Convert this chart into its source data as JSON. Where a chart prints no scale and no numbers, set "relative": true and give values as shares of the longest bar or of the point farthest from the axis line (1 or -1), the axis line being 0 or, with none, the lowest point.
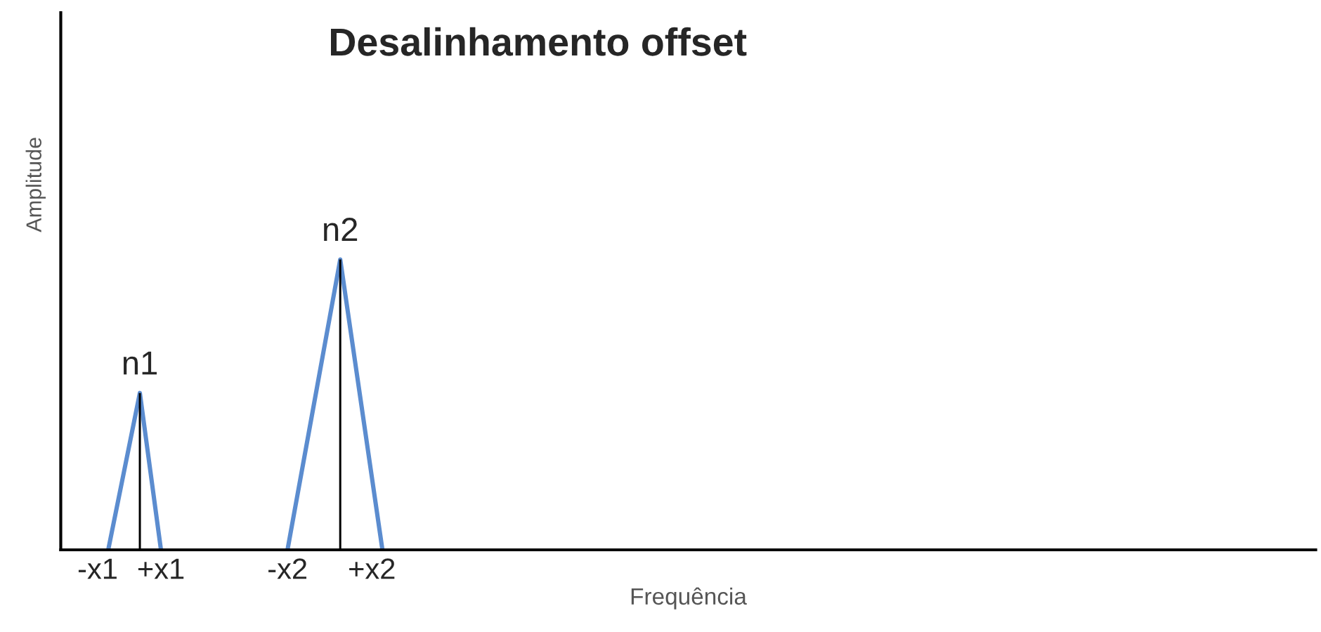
{
  "chart_data": {
    "type": "line",
    "title": "Desalinhamento offset",
    "xlabel": "Frequência",
    "ylabel": "Amplitude",
    "relative": true,
    "categories": [
      null,
      null,
      null,
      "-x1",
      null,
      null,
      null,
      null,
      null,
      "+x1",
      null,
      null,
      null,
      null,
      null,
      null,
      null,
      null,
      null,
      null,
      null,
      "-x2",
      null,
      null,
      null,
      null,
      null,
      null,
      null,
      "+x2",
      null,
      null,
      null,
      null,
      null,
      null,
      null,
      null,
      null,
      null,
      null,
      null,
      null,
      null,
      null,
      null,
      null,
      null,
      null,
      null,
      null,
      null,
      null,
      null,
      null,
      null,
      null,
      null,
      null,
      null,
      null,
      null,
      null,
      null,
      null,
      null,
      null,
      null,
      null,
      null,
      null,
      null,
      null,
      null,
      null,
      null,
      null,
      null,
      null,
      null,
      null,
      null,
      null,
      null,
      null,
      null,
      null,
      null,
      null,
      null,
      null,
      null,
      null,
      null,
      null,
      null,
      null,
      null,
      null,
      null,
      null,
      null,
      null,
      null,
      null,
      null,
      null,
      null,
      null,
      null,
      null,
      null,
      null,
      null,
      null,
      null,
      null,
      null,
      null
    ],
    "series": [
      {
        "color": "#5b8ccf",
        "values": [
          null,
          null,
          null,
          null,
          0,
          0.18,
          0.36,
          0.54,
          0.27,
          0,
          null,
          null,
          null,
          null,
          null,
          null,
          null,
          null,
          null,
          null,
          null,
          null,
          null,
          null,
          null,
          null,
          null,
          null,
          null,
          null,
          null,
          null,
          null,
          null,
          null,
          null,
          null,
          null,
          null,
          null,
          null,
          null,
          null,
          null,
          null,
          null,
          null,
          null,
          null,
          null,
          null,
          null,
          null,
          null,
          null,
          null,
          null,
          null,
          null,
          null,
          null,
          null,
          null,
          null,
          null,
          null,
          null,
          null,
          null,
          null,
          null,
          null,
          null,
          null,
          null,
          null,
          null,
          null,
          null,
          null,
          null,
          null,
          null,
          null,
          null,
          null,
          null,
          null,
          null,
          null,
          null,
          null,
          null,
          null,
          null,
          null,
          null,
          null,
          null,
          null,
          null,
          null,
          null,
          null,
          null,
          null,
          null,
          null,
          null,
          null,
          null,
          null,
          null,
          null,
          null,
          null,
          null,
          null,
          null
        ]
      },
      {
        "color": "#5b8ccf",
        "values": [
          null,
          null,
          null,
          null,
          null,
          null,
          null,
          null,
          null,
          null,
          null,
          null,
          null,
          null,
          null,
          null,
          null,
          null,
          null,
          null,
          null,
          0,
          0.2,
          0.4,
          0.6,
          0.8,
          1,
          0.75,
          0.5,
          0.25,
          0,
          null,
          null,
          null,
          null,
          null,
          null,
          null,
          null,
          null,
          null,
          null,
          null,
          null,
          null,
          null,
          null,
          null,
          null,
          null,
          null,
          null,
          null,
          null,
          null,
          null,
          null,
          null,
          null,
          null,
          null,
          null,
          null,
          null,
          null,
          null,
          null,
          null,
          null,
          null,
          null,
          null,
          null,
          null,
          null,
          null,
          null,
          null,
          null,
          null,
          null,
          null,
          null,
          null,
          null,
          null,
          null,
          null,
          null,
          null,
          null,
          null,
          null,
          null,
          null,
          null,
          null,
          null,
          null,
          null,
          null,
          null,
          null,
          null,
          null,
          null,
          null,
          null,
          null,
          null,
          null,
          null,
          null,
          null,
          null,
          null,
          null,
          null,
          null
        ]
      },
      {
        "type": "bar",
        "color": "#000000",
        "values": [
          null,
          null,
          null,
          null,
          null,
          null,
          null,
          0.54,
          null,
          null,
          null,
          null,
          null,
          null,
          null,
          null,
          null,
          null,
          null,
          null,
          null,
          null,
          null,
          null,
          null,
          null,
          1,
          null,
          null,
          null,
          null,
          null,
          null,
          null,
          null,
          null,
          null,
          null,
          null,
          null,
          null,
          null,
          null,
          null,
          null,
          null,
          null,
          null,
          null,
          null,
          null,
          null,
          null,
          null,
          null,
          null,
          null,
          null,
          null,
          null,
          null,
          null,
          null,
          null,
          null,
          null,
          null,
          null,
          null,
          null,
          null,
          null,
          null,
          null,
          null,
          null,
          null,
          null,
          null,
          null,
          null,
          null,
          null,
          null,
          null,
          null,
          null,
          null,
          null,
          null,
          null,
          null,
          null,
          null,
          null,
          null,
          null,
          null,
          null,
          null,
          null,
          null,
          null,
          null,
          null,
          null,
          null,
          null,
          null,
          null,
          null,
          null,
          null,
          null,
          null,
          null,
          null,
          null,
          null
        ]
      }
    ],
    "annotations": [
      {
        "text": "n1",
        "y": 0.54
      },
      {
        "text": "n2",
        "y": 1
      }
    ],
    "grid": false,
    "legend": false
  }
}
